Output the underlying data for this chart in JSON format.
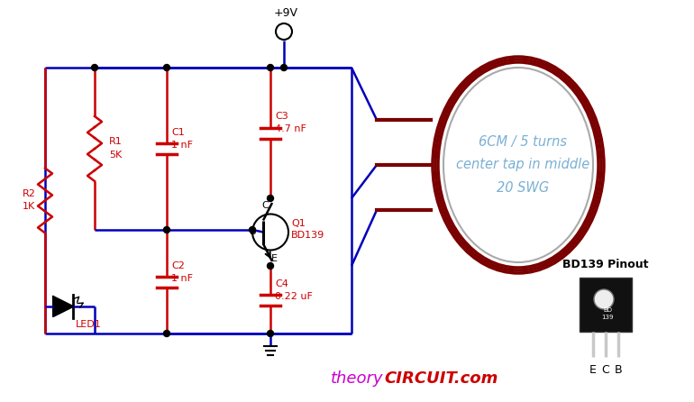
{
  "bg_color": "#ffffff",
  "wire_color": "#0000bb",
  "red_color": "#cc0000",
  "dark_red": "#7a0000",
  "text_blue": "#7ab0d4",
  "title_theory": "#cc00cc",
  "title_circuit": "#cc0000",
  "node_color": "#000000",
  "gray": "#aaaaaa",
  "supply_label": "+9V",
  "coil_text": "6CM / 5 turns\ncenter tap in middle\n20 SWG",
  "transistor_label": "Q1",
  "transistor_model": "BD139",
  "r1_label": "R1",
  "r1_val": "5K",
  "r2_label": "R2",
  "r2_val": "1K",
  "c1_label": "C1",
  "c1_val": "1 nF",
  "c2_label": "C2",
  "c2_val": "1 nF",
  "c3_label": "C3",
  "c3_val": "4.7 nF",
  "c4_label": "C4",
  "c4_val": "0.22 uF",
  "led_label": "LED1",
  "bd139_pinout": "BD139 Pinout",
  "theory_text": "theory",
  "circuit_text": "CIRCUIT.com",
  "figsize": [
    7.7,
    4.46
  ],
  "dpi": 100
}
